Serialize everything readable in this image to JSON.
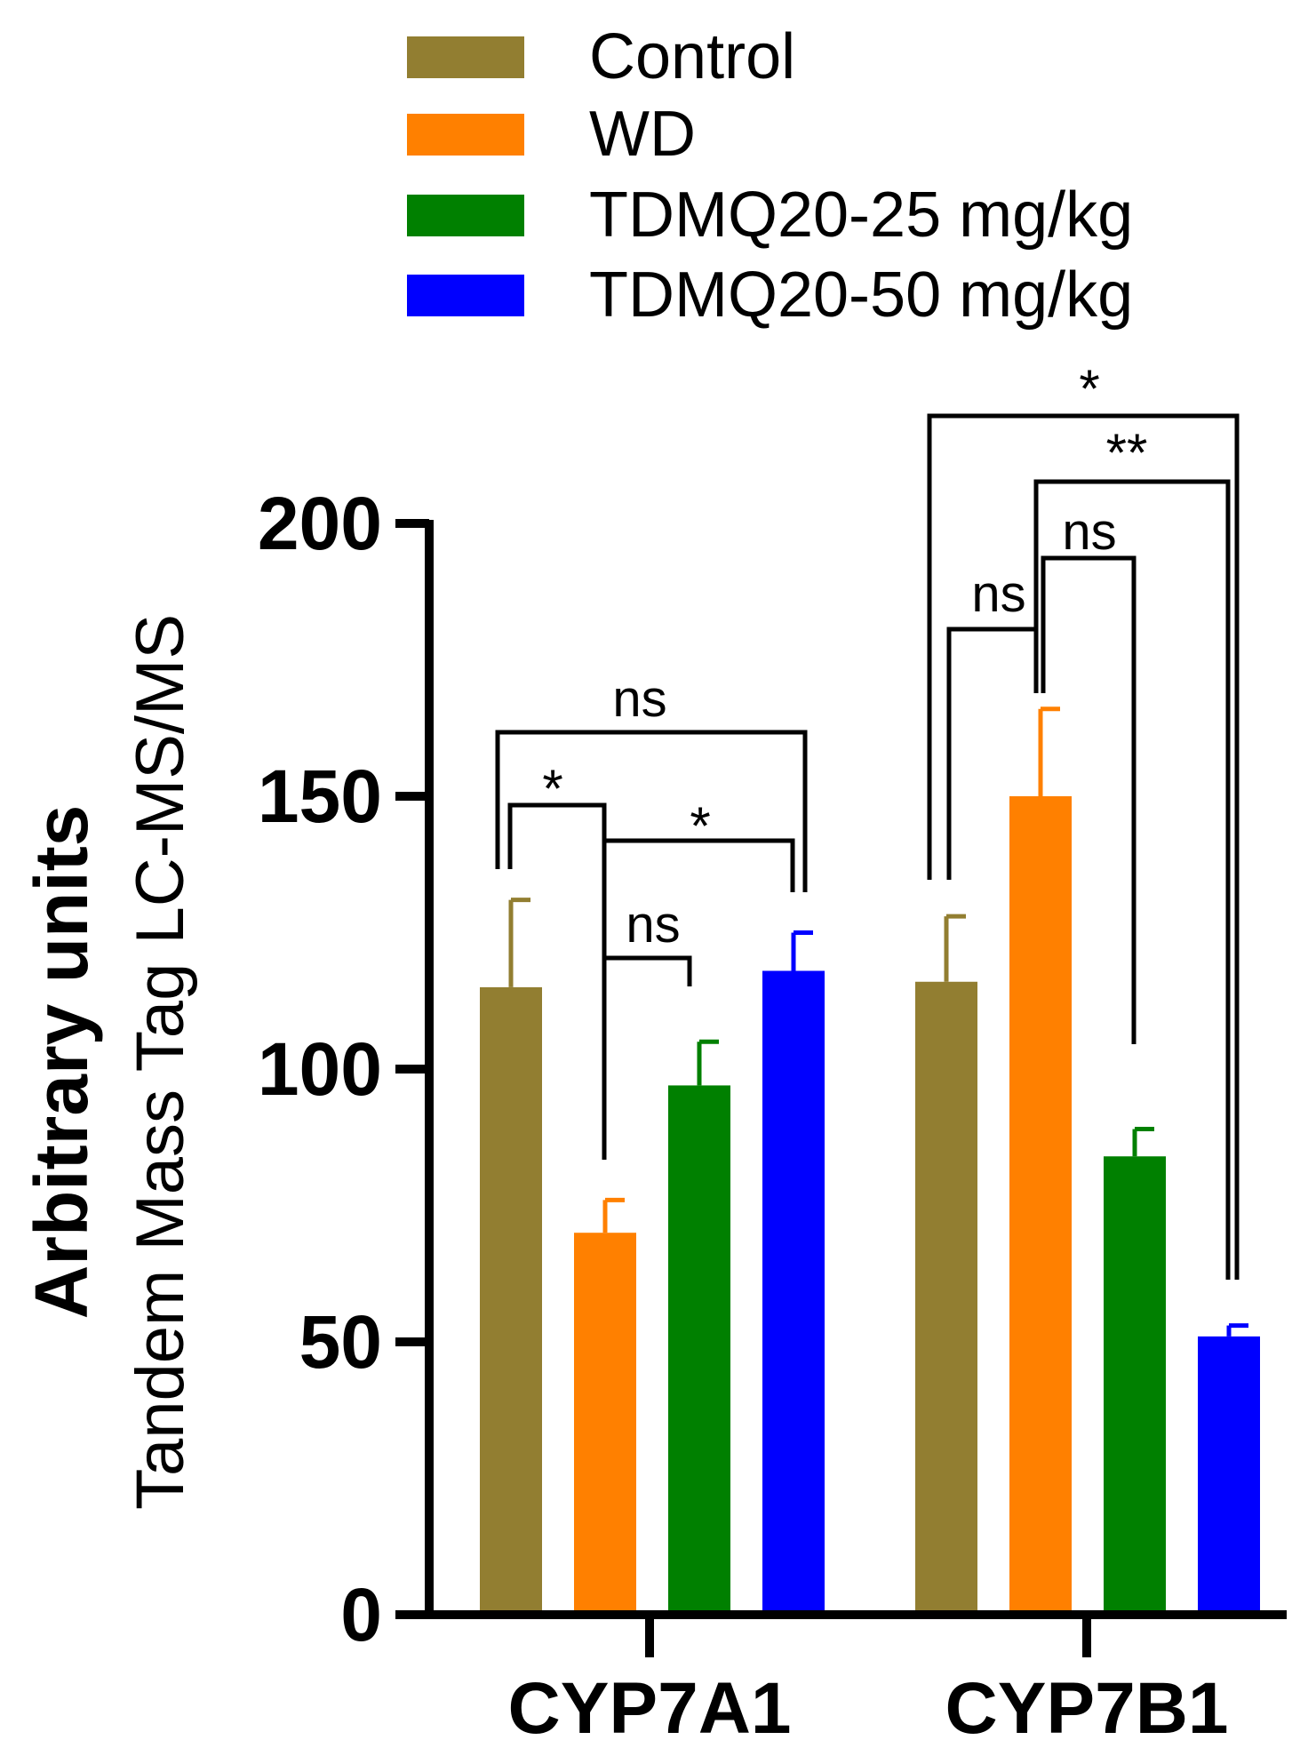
{
  "chart_data": {
    "type": "bar",
    "categories": [
      "CYP7A1",
      "CYP7B1"
    ],
    "series": [
      {
        "name": "Control",
        "color": "#927E31",
        "values": [
          115,
          116
        ],
        "errors": [
          16,
          12
        ]
      },
      {
        "name": "WD",
        "color": "#FF8000",
        "values": [
          70,
          150
        ],
        "errors": [
          6,
          16
        ]
      },
      {
        "name": "TDMQ20-25 mg/kg",
        "color": "#008000",
        "values": [
          97,
          84
        ],
        "errors": [
          8,
          5
        ]
      },
      {
        "name": "TDMQ20-50 mg/kg",
        "color": "#0000FF",
        "values": [
          118,
          51
        ],
        "errors": [
          7,
          2
        ]
      }
    ],
    "ylabel_line1": "Arbitrary units",
    "ylabel_line2": "Tandem Mass Tag LC-MS/MS",
    "ylim": [
      0,
      200
    ],
    "yticks": [
      0,
      50,
      100,
      150,
      200
    ],
    "ytick_labels": [
      "0",
      "50",
      "100",
      "150",
      "200"
    ],
    "legend_position": "top",
    "significance": [
      {
        "category": "CYP7A1",
        "from": "Control",
        "to": "TDMQ20-50 mg/kg",
        "label": "ns"
      },
      {
        "category": "CYP7A1",
        "from": "Control",
        "to": "WD",
        "label": "*"
      },
      {
        "category": "CYP7A1",
        "from": "WD",
        "to": "TDMQ20-50 mg/kg",
        "label": "*"
      },
      {
        "category": "CYP7A1",
        "from": "WD",
        "to": "TDMQ20-25 mg/kg",
        "label": "ns"
      },
      {
        "category": "CYP7B1",
        "from": "Control",
        "to": "TDMQ20-50 mg/kg",
        "label": "*"
      },
      {
        "category": "CYP7B1",
        "from": "WD",
        "to": "TDMQ20-50 mg/kg",
        "label": "**"
      },
      {
        "category": "CYP7B1",
        "from": "WD",
        "to": "TDMQ20-25 mg/kg",
        "label": "ns"
      },
      {
        "category": "CYP7B1",
        "from": "Control",
        "to": "WD",
        "label": "ns"
      }
    ]
  }
}
